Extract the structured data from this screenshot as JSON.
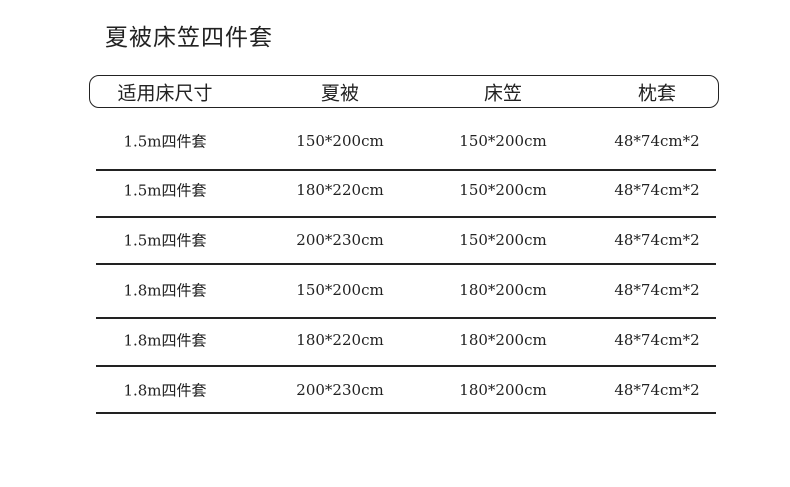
{
  "title": "夏被床笠四件套",
  "headers": [
    "适用床尺寸",
    "夏被",
    "床笠",
    "枕套"
  ],
  "rows": [
    [
      "1.5m四件套",
      "150*200cm",
      "150*200cm",
      "48*74cm*2"
    ],
    [
      "1.5m四件套",
      "180*220cm",
      "150*200cm",
      "48*74cm*2"
    ],
    [
      "1.5m四件套",
      "200*230cm",
      "150*200cm",
      "48*74cm*2"
    ],
    [
      "1.8m四件套",
      "150*200cm",
      "180*200cm",
      "48*74cm*2"
    ],
    [
      "1.8m四件套",
      "180*220cm",
      "180*200cm",
      "48*74cm*2"
    ],
    [
      "1.8m四件套",
      "200*230cm",
      "180*200cm",
      "48*74cm*2"
    ]
  ]
}
